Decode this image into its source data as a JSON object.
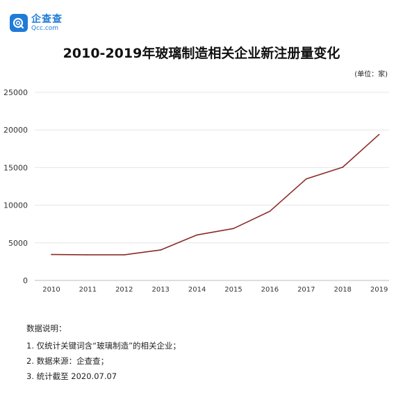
{
  "logo": {
    "name_cn": "企查查",
    "name_en": "Qcc.com"
  },
  "unit_label": "(单位：家)",
  "notes": {
    "heading": "数据说明：",
    "items": [
      "1. 仅统计关键词含“玻璃制造”的相关企业；",
      "2. 数据来源：企查查；",
      "3. 统计截至 2020.07.07"
    ]
  },
  "colors": {
    "line": "#8b2a26",
    "grid": "#e6e6e6",
    "logo": "#1f7bd8"
  },
  "chart_data": {
    "type": "line",
    "title": "2010-2019年玻璃制造相关企业新注册量变化",
    "categories": [
      "2010",
      "2011",
      "2012",
      "2013",
      "2014",
      "2015",
      "2016",
      "2017",
      "2018",
      "2019"
    ],
    "series": [
      {
        "values": [
          3450,
          3400,
          3400,
          4050,
          6050,
          6900,
          9200,
          13500,
          15050,
          19400
        ]
      }
    ],
    "yticks": [
      0,
      5000,
      10000,
      15000,
      20000,
      25000
    ],
    "ylim": [
      0,
      25000
    ],
    "grid": true,
    "legend": "none"
  }
}
